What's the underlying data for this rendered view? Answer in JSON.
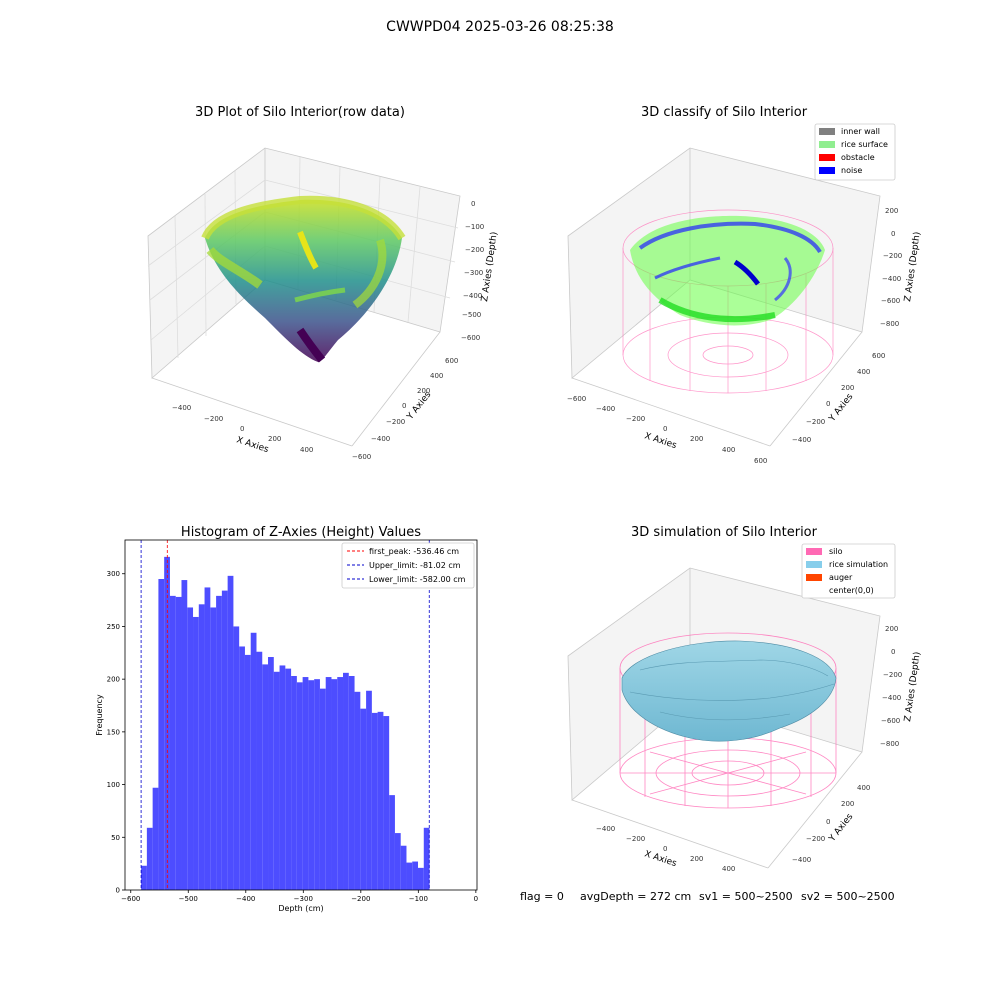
{
  "figure": {
    "suptitle": "CWWPD04 2025-03-26 08:25:38",
    "footer": {
      "flag": "flag = 0",
      "avg_depth": "avgDepth = 272 cm",
      "sv1": "sv1 = 500~2500",
      "sv2": "sv2 = 500~2500"
    }
  },
  "colors": {
    "hist_bar": "#4d4dff",
    "first_peak_line": "#ff0000",
    "limit_lines": "#0000cc",
    "inner_wall": "#808080",
    "rice_surface": "#90ee90",
    "obstacle": "#ff0000",
    "noise": "#0000ff",
    "silo": "#ff69b4",
    "rice_simulation": "#87ceeb",
    "auger": "#ff4500"
  },
  "chart_data": [
    {
      "type": "scatter3d",
      "title": "3D Plot of Silo Interior(row data)",
      "xlabel": "X Axies",
      "ylabel": "Y Axies",
      "zlabel": "Z Axies (Depth)",
      "x_ticks": [
        "−400",
        "−200",
        "0",
        "200",
        "400"
      ],
      "y_ticks": [
        "−600",
        "−400",
        "−200",
        "0",
        "200",
        "400",
        "600"
      ],
      "z_ticks": [
        "0",
        "−100",
        "−200",
        "−300",
        "−400",
        "−500",
        "−600"
      ],
      "colormap": "viridis"
    },
    {
      "type": "scatter3d",
      "title": "3D classify of Silo Interior",
      "xlabel": "X Axies",
      "ylabel": "Y Axies",
      "zlabel": "Z Axies (Depth)",
      "x_ticks": [
        "−600",
        "−400",
        "−200",
        "0",
        "200",
        "400",
        "600"
      ],
      "y_ticks": [
        "−400",
        "−200",
        "0",
        "200",
        "400",
        "600"
      ],
      "z_ticks": [
        "200",
        "0",
        "−200",
        "−400",
        "−600",
        "−800"
      ],
      "legend": [
        "inner wall",
        "rice surface",
        "obstacle",
        "noise"
      ],
      "legend_position": "top-right"
    },
    {
      "type": "bar",
      "title": "Histogram of Z-Axies (Height) Values",
      "xlabel": "Depth (cm)",
      "ylabel": "Frequency",
      "xlim": [
        -610,
        2
      ],
      "ylim": [
        0,
        332
      ],
      "x_ticks": [
        -600,
        -500,
        -400,
        -300,
        -200,
        -100,
        0
      ],
      "y_ticks": [
        0,
        50,
        100,
        150,
        200,
        250,
        300
      ],
      "bin_start": -582,
      "bin_width": 10.03,
      "values": [
        23,
        59,
        97,
        295,
        316,
        279,
        278,
        294,
        268,
        259,
        271,
        287,
        268,
        279,
        284,
        298,
        250,
        231,
        223,
        244,
        226,
        214,
        221,
        207,
        213,
        210,
        203,
        197,
        202,
        199,
        200,
        191,
        202,
        200,
        202,
        206,
        203,
        188,
        172,
        189,
        168,
        169,
        165,
        90,
        54,
        42,
        26,
        27,
        21,
        59
      ],
      "vlines": [
        {
          "label": "first_peak: -536.46 cm",
          "x": -536.46
        },
        {
          "label": "Upper_limit: -81.02 cm",
          "x": -81.02
        },
        {
          "label": "Lower_limit: -582.00 cm",
          "x": -582.0
        }
      ],
      "legend_position": "top-right"
    },
    {
      "type": "surface3d",
      "title": "3D simulation of Silo Interior",
      "xlabel": "X Axies",
      "ylabel": "Y Axies",
      "zlabel": "Z Axies (Depth)",
      "x_ticks": [
        "−400",
        "−200",
        "0",
        "200",
        "400"
      ],
      "y_ticks": [
        "−400",
        "−200",
        "0",
        "200",
        "400"
      ],
      "z_ticks": [
        "200",
        "0",
        "−200",
        "−400",
        "−600",
        "−800"
      ],
      "legend": [
        "silo",
        "rice simulation",
        "auger",
        "center(0,0)"
      ],
      "legend_position": "top-right"
    }
  ]
}
